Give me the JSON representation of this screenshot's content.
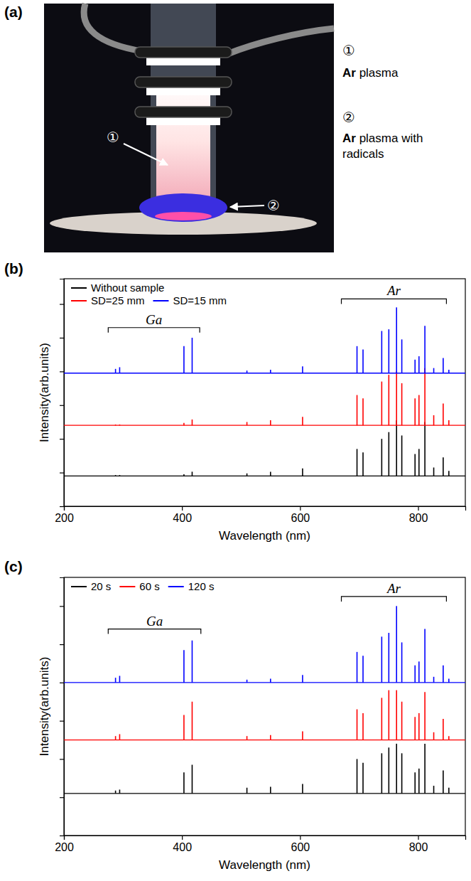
{
  "photo": {
    "letter": "(a)",
    "labels": [
      {
        "number": "①",
        "text": "Ar plasma"
      },
      {
        "number": "②",
        "text": "Ar plasma with radicals"
      }
    ]
  },
  "chart_data": [
    {
      "type": "stem",
      "panel_label": "(b)",
      "x_label": "Wavelength (nm)",
      "y_label": "Intensity(arb.units)",
      "xlim": [
        200,
        880
      ],
      "xticks": [
        200,
        400,
        600,
        800
      ],
      "ylim": [
        0,
        13.5
      ],
      "yticks": [
        0,
        2,
        4,
        6,
        8,
        10,
        12
      ],
      "tick_labels": "x",
      "grid": false,
      "legend": "upper left",
      "series": [
        {
          "name": "Without sample",
          "color": "#000000",
          "baseline": 1.8,
          "x": [
            287.4,
            294.4,
            403.3,
            417.2,
            510,
            550,
            604.3,
            696.5,
            706.7,
            738.4,
            750.4,
            763.5,
            772.4,
            794.8,
            801.5,
            811.5,
            826.5,
            842.5,
            852.1
          ],
          "values": [
            1.85,
            1.85,
            1.9,
            2.05,
            1.95,
            2.05,
            2.25,
            3.4,
            3.2,
            4.0,
            4.4,
            5.1,
            4.2,
            3.1,
            3.4,
            5.0,
            2.3,
            2.9,
            2.1
          ]
        },
        {
          "name": "SD=25 mm",
          "color": "#ff0000",
          "baseline": 4.8,
          "x": [
            287.4,
            294.4,
            403.3,
            417.2,
            510,
            550,
            604.3,
            696.5,
            706.7,
            738.4,
            750.4,
            763.5,
            772.4,
            794.8,
            801.5,
            811.5,
            826.5,
            842.5,
            852.1
          ],
          "values": [
            4.85,
            4.85,
            4.95,
            5.15,
            5.0,
            5.1,
            5.3,
            6.6,
            6.4,
            7.4,
            7.8,
            8.0,
            7.3,
            6.4,
            6.6,
            8.2,
            5.4,
            6.1,
            5.1
          ]
        },
        {
          "name": "SD=15 mm",
          "color": "#0000ff",
          "baseline": 7.9,
          "x": [
            287.4,
            294.4,
            403.3,
            417.2,
            510,
            550,
            604.3,
            696.5,
            706.7,
            738.4,
            750.4,
            763.5,
            772.4,
            794.8,
            801.5,
            811.5,
            826.5,
            842.5,
            852.1
          ],
          "values": [
            8.15,
            8.25,
            9.5,
            10.0,
            8.05,
            8.1,
            8.3,
            9.5,
            9.3,
            10.4,
            10.5,
            11.8,
            9.9,
            8.7,
            8.9,
            10.7,
            8.2,
            8.8,
            8.1
          ]
        }
      ],
      "annotations": [
        {
          "text": "Ga",
          "x_range": [
            275,
            430
          ],
          "y": 10.6
        },
        {
          "text": "Ar",
          "x_range": [
            670,
            848
          ],
          "y": 12.3
        }
      ]
    },
    {
      "type": "stem",
      "panel_label": "(c)",
      "x_label": "Wavelength (nm)",
      "y_label": "Intensity(arb.units)",
      "xlim": [
        200,
        880
      ],
      "xticks": [
        200,
        400,
        600,
        800
      ],
      "ylim": [
        0,
        13.5
      ],
      "yticks": [
        0,
        2,
        4,
        6,
        8,
        10,
        12
      ],
      "tick_labels": "x",
      "grid": false,
      "legend": "upper left",
      "series": [
        {
          "name": "20 s",
          "color": "#000000",
          "baseline": 2.2,
          "x": [
            287.4,
            294.4,
            403.3,
            417.2,
            510,
            550,
            604.3,
            696.5,
            706.7,
            738.4,
            750.4,
            763.5,
            772.4,
            794.8,
            801.5,
            811.5,
            826.5,
            842.5,
            852.1
          ],
          "values": [
            2.35,
            2.4,
            3.3,
            3.7,
            2.5,
            2.55,
            2.7,
            4.0,
            3.8,
            4.3,
            4.6,
            4.8,
            4.3,
            3.3,
            3.5,
            4.8,
            2.6,
            3.4,
            2.5
          ]
        },
        {
          "name": "60 s",
          "color": "#ff0000",
          "baseline": 5.0,
          "x": [
            287.4,
            294.4,
            403.3,
            417.2,
            510,
            550,
            604.3,
            696.5,
            706.7,
            738.4,
            750.4,
            763.5,
            772.4,
            794.8,
            801.5,
            811.5,
            826.5,
            842.5,
            852.1
          ],
          "values": [
            5.2,
            5.3,
            6.3,
            7.0,
            5.2,
            5.25,
            5.45,
            6.6,
            6.4,
            7.2,
            7.6,
            7.6,
            7.0,
            6.2,
            6.4,
            7.5,
            5.4,
            6.1,
            5.2
          ]
        },
        {
          "name": "120 s",
          "color": "#0000ff",
          "baseline": 8.0,
          "x": [
            287.4,
            294.4,
            403.3,
            417.2,
            510,
            550,
            604.3,
            696.5,
            706.7,
            738.4,
            750.4,
            763.5,
            772.4,
            794.8,
            801.5,
            811.5,
            826.5,
            842.5,
            852.1
          ],
          "values": [
            8.25,
            8.35,
            9.7,
            10.2,
            8.15,
            8.2,
            8.4,
            9.6,
            9.4,
            10.4,
            10.6,
            12.0,
            10.1,
            8.9,
            9.1,
            10.8,
            8.3,
            8.9,
            8.2
          ]
        }
      ],
      "annotations": [
        {
          "text": "Ga",
          "x_range": [
            275,
            432
          ],
          "y": 10.8
        },
        {
          "text": "Ar",
          "x_range": [
            670,
            848
          ],
          "y": 12.5
        }
      ]
    }
  ]
}
